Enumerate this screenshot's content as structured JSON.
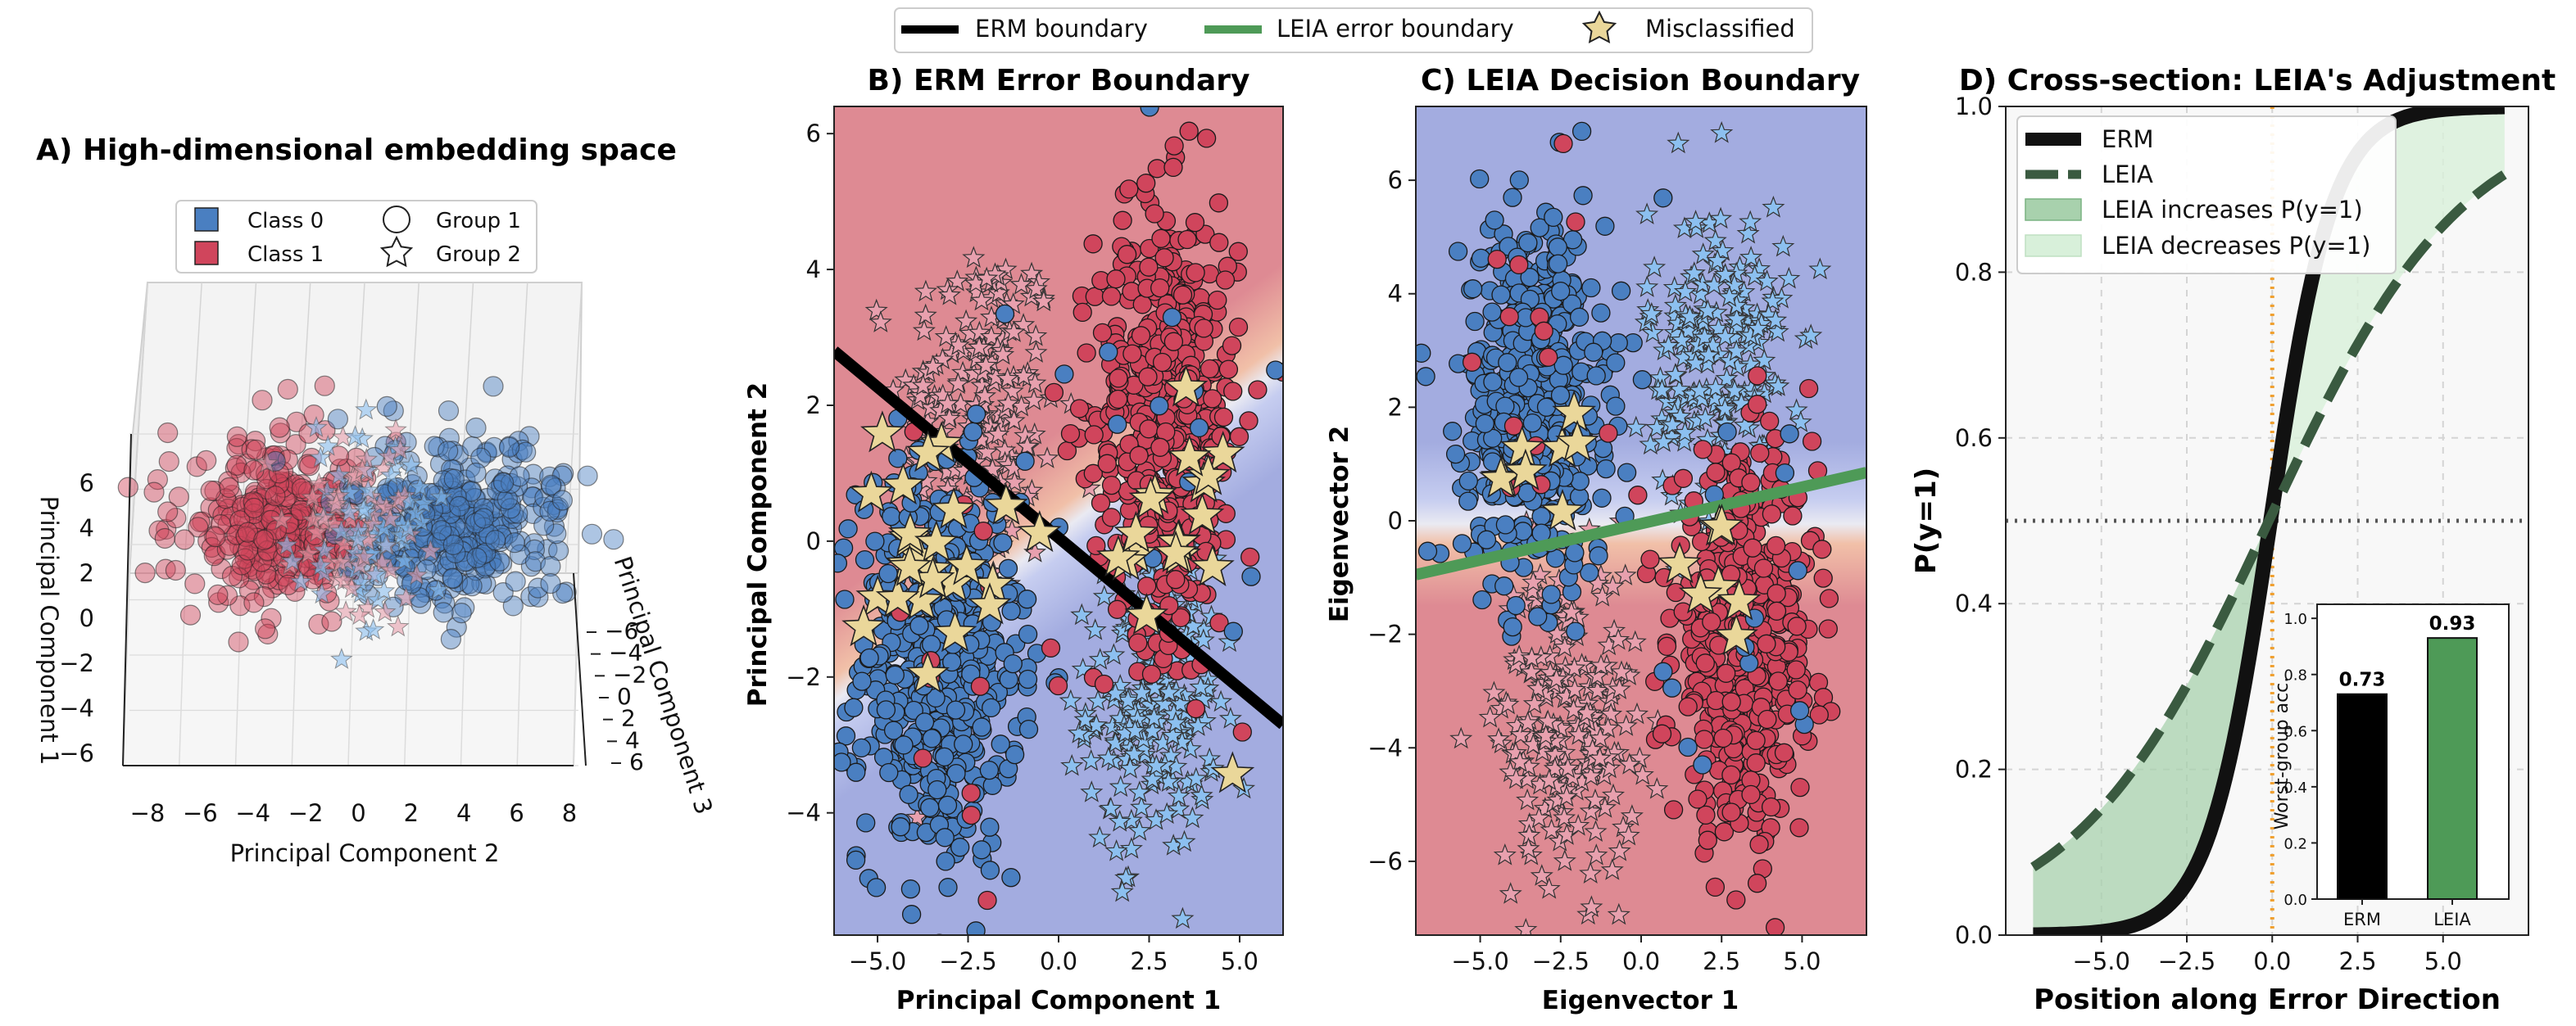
{
  "colors": {
    "class0": "#4a7fc1",
    "class1": "#d0455c",
    "group2_light": "#8cc0f0",
    "group2_pink": "#e8a0ae",
    "misclassified": "#ead79a",
    "erm_line": "#000000",
    "leia_line": "#4e9a57",
    "bg_red": "#de8a93",
    "bg_blue": "#a3ace0",
    "dark_green": "#3a5a40",
    "fill_increase": "#a8d1ad",
    "fill_decrease": "#d8f0da",
    "orange": "#f0a030"
  },
  "legend_top": {
    "items": [
      {
        "label": "ERM boundary",
        "kind": "line",
        "color": "#000000"
      },
      {
        "label": "LEIA error boundary",
        "kind": "line",
        "color": "#4e9a57"
      },
      {
        "label": "Misclassified",
        "kind": "star",
        "color": "#ead79a"
      }
    ]
  },
  "panel_a": {
    "title": "A) High-dimensional embedding space",
    "legend": [
      "Class 0",
      "Class 1",
      "Group 1",
      "Group 2"
    ],
    "xlabel": "Principal Component 2",
    "ylabel": "Principal Component 1",
    "zlabel": "Principal Component 3",
    "x_ticks": [
      "−8",
      "−6",
      "−4",
      "−2",
      "0",
      "2",
      "4",
      "6",
      "8"
    ],
    "y_ticks": [
      "6",
      "4",
      "2",
      "0",
      "−2",
      "−4",
      "−6"
    ],
    "z_ticks": [
      "−6",
      "−4",
      "−2",
      "0",
      "2",
      "4",
      "6"
    ]
  },
  "panel_b": {
    "title": "B) ERM Error Boundary",
    "xlabel": "Principal Component 1",
    "ylabel": "Principal Component 2",
    "x_ticks": [
      "−5.0",
      "−2.5",
      "0.0",
      "2.5",
      "5.0"
    ],
    "y_ticks": [
      "6",
      "4",
      "2",
      "0",
      "−2",
      "−4"
    ]
  },
  "panel_c": {
    "title": "C) LEIA Decision Boundary",
    "xlabel": "Eigenvector 1",
    "ylabel": "Eigenvector 2",
    "x_ticks": [
      "−5.0",
      "−2.5",
      "0.0",
      "2.5",
      "5.0"
    ],
    "y_ticks": [
      "6",
      "4",
      "2",
      "0",
      "−2",
      "−4",
      "−6"
    ]
  },
  "panel_d": {
    "title": "D) Cross-section: LEIA's Adjustment",
    "xlabel": "Position along Error Direction",
    "ylabel": "P(y=1)",
    "x_ticks": [
      "−5.0",
      "−2.5",
      "0.0",
      "2.5",
      "5.0"
    ],
    "y_ticks": [
      "0.0",
      "0.2",
      "0.4",
      "0.6",
      "0.8",
      "1.0"
    ],
    "legend": [
      "ERM",
      "LEIA",
      "LEIA increases P(y=1)",
      "LEIA decreases P(y=1)"
    ],
    "inset_ylabel": "Worst-group acc.",
    "inset_ticks": [
      "0.0",
      "0.2",
      "0.4",
      "0.6",
      "0.8",
      "1.0"
    ]
  },
  "chart_data": [
    {
      "type": "scatter",
      "panel": "A",
      "title": "A) High-dimensional embedding space",
      "xlabel": "Principal Component 2",
      "ylabel": "Principal Component 1",
      "zlabel": "Principal Component 3",
      "xlim": [
        -8,
        8
      ],
      "ylim": [
        -6,
        6
      ],
      "zlim": [
        -6,
        6
      ],
      "series": [
        {
          "name": "Class 1 / Group 1",
          "center": [
            -4.5,
            3.5
          ]
        },
        {
          "name": "Class 0 / Group 1",
          "center": [
            3.5,
            3.0
          ]
        },
        {
          "name": "Group 2",
          "center": [
            0.0,
            3.2
          ]
        }
      ]
    },
    {
      "type": "scatter",
      "panel": "B",
      "title": "B) ERM Error Boundary",
      "xlabel": "Principal Component 1",
      "ylabel": "Principal Component 2",
      "xlim": [
        -6.2,
        6.2
      ],
      "ylim": [
        -5.8,
        6.4
      ],
      "erm_boundary": {
        "x": [
          -6.2,
          6.2
        ],
        "y": [
          2.8,
          -2.7
        ]
      },
      "clusters": [
        {
          "name": "Class 0 Group 1",
          "center": [
            -3.3,
            -1.8
          ],
          "spread": [
            1.1,
            1.5
          ]
        },
        {
          "name": "Class 1 Group 1",
          "center": [
            3.0,
            1.8
          ],
          "spread": [
            1.0,
            1.6
          ]
        },
        {
          "name": "Group 2 Class 1",
          "center": [
            -2.2,
            1.8
          ],
          "spread": [
            1.1,
            1.4
          ]
        },
        {
          "name": "Group 2 Class 0",
          "center": [
            2.6,
            -2.4
          ],
          "spread": [
            0.9,
            1.1
          ]
        }
      ]
    },
    {
      "type": "scatter",
      "panel": "C",
      "title": "C) LEIA Decision Boundary",
      "xlabel": "Eigenvector 1",
      "ylabel": "Eigenvector 2",
      "xlim": [
        -7.0,
        7.0
      ],
      "ylim": [
        -7.3,
        7.3
      ],
      "leia_boundary": {
        "x": [
          -7.0,
          7.0
        ],
        "y": [
          -0.95,
          0.85
        ]
      },
      "clusters": [
        {
          "name": "Class 0 Group 1",
          "center": [
            -3.3,
            2.2
          ],
          "spread": [
            1.1,
            1.6
          ]
        },
        {
          "name": "Class 1 Group 1",
          "center": [
            3.2,
            -2.2
          ],
          "spread": [
            1.1,
            1.6
          ]
        },
        {
          "name": "Group 2 Class 1",
          "center": [
            -2.3,
            -3.5
          ],
          "spread": [
            1.1,
            1.4
          ]
        },
        {
          "name": "Group 2 Class 0",
          "center": [
            2.4,
            2.8
          ],
          "spread": [
            1.1,
            1.4
          ]
        }
      ]
    },
    {
      "type": "line",
      "panel": "D",
      "title": "D) Cross-section: LEIA's Adjustment",
      "xlabel": "Position along Error Direction",
      "ylabel": "P(y=1)",
      "xlim": [
        -7.8,
        7.5
      ],
      "ylim": [
        0,
        1
      ],
      "x_range": [
        -7.0,
        6.8
      ],
      "series": [
        {
          "name": "ERM",
          "formula": "1/(1+exp(-1.1*(x+0.05)))"
        },
        {
          "name": "LEIA",
          "formula": "1/(1+exp(-0.35*(x+0.1)))"
        }
      ],
      "reference_lines": {
        "vertical_x": 0,
        "horizontal_y": 0.5
      }
    },
    {
      "type": "bar",
      "panel": "D-inset",
      "categories": [
        "ERM",
        "LEIA"
      ],
      "values": [
        0.73,
        0.93
      ],
      "ylabel": "Worst-group acc.",
      "ylim": [
        0,
        1.05
      ]
    }
  ]
}
